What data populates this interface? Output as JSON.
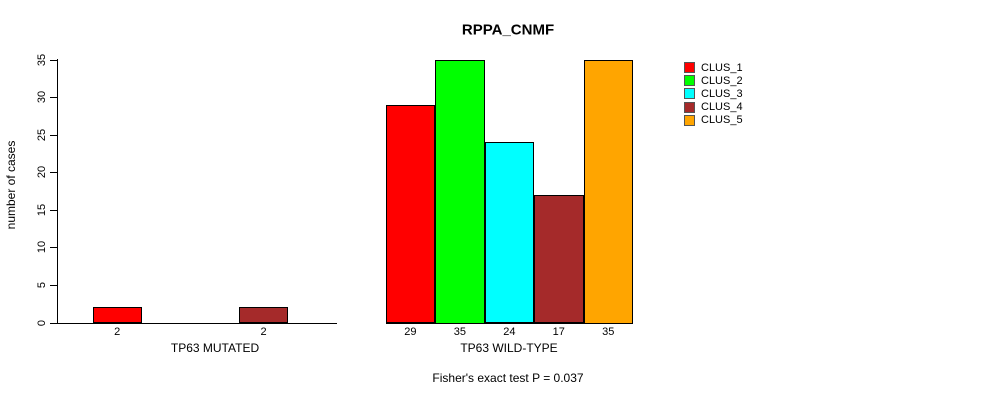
{
  "title": "RPPA_CNMF",
  "subtitle": "Fisher's exact test P = 0.037",
  "ylabel": "number of cases",
  "chart_data": {
    "type": "bar",
    "title": "RPPA_CNMF",
    "xlabel": "",
    "ylabel": "number of cases",
    "ylim": [
      0,
      35
    ],
    "yticks": [
      0,
      5,
      10,
      15,
      20,
      25,
      30,
      35
    ],
    "grid": false,
    "annotation": "Fisher's exact test P = 0.037",
    "bar_border_color": "#000000",
    "series": [
      {
        "name": "CLUS_1",
        "color": "#FF0000"
      },
      {
        "name": "CLUS_2",
        "color": "#00FF00"
      },
      {
        "name": "CLUS_3",
        "color": "#00FFFF"
      },
      {
        "name": "CLUS_4",
        "color": "#A52A2A"
      },
      {
        "name": "CLUS_5",
        "color": "#FFA500"
      }
    ],
    "groups": [
      {
        "label": "TP63 MUTATED",
        "values": [
          2,
          0,
          0,
          2,
          0
        ],
        "shown_value_labels": [
          "2",
          "2"
        ]
      },
      {
        "label": "TP63 WILD-TYPE",
        "values": [
          29,
          35,
          24,
          17,
          35
        ],
        "shown_value_labels": [
          "29",
          "35",
          "24",
          "17",
          "35"
        ]
      }
    ],
    "legend": {
      "position": "right",
      "entries": [
        {
          "label": "CLUS_1",
          "color": "#FF0000"
        },
        {
          "label": "CLUS_2",
          "color": "#00FF00"
        },
        {
          "label": "CLUS_3",
          "color": "#00FFFF"
        },
        {
          "label": "CLUS_4",
          "color": "#A52A2A"
        },
        {
          "label": "CLUS_5",
          "color": "#FFA500"
        }
      ]
    }
  }
}
